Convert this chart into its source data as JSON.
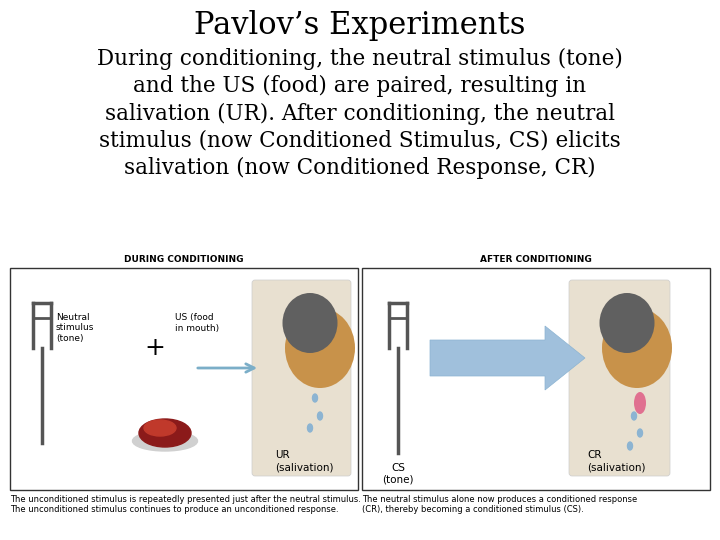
{
  "title": "Pavlov’s Experiments",
  "title_fontsize": 22,
  "title_font": "serif",
  "body_text": "During conditioning, the neutral stimulus (tone)\nand the US (food) are paired, resulting in\nsalivation (UR). After conditioning, the neutral\nstimulus (now Conditioned Stimulus, CS) elicits\nsalivation (now Conditioned Response, CR)",
  "body_fontsize": 15.5,
  "body_font": "serif",
  "background_color": "#ffffff",
  "text_color": "#000000",
  "during_label": "DURING CONDITIONING",
  "after_label": "AFTER CONDITIONING",
  "caption_left": "The unconditioned stimulus is repeatedly presented just after the neutral stimulus.\nThe unconditioned stimulus continues to produce an unconditioned response.",
  "caption_right": "The neutral stimulus alone now produces a conditioned response\n(CR), thereby becoming a conditioned stimulus (CS).",
  "caption_fontsize": 6.0
}
